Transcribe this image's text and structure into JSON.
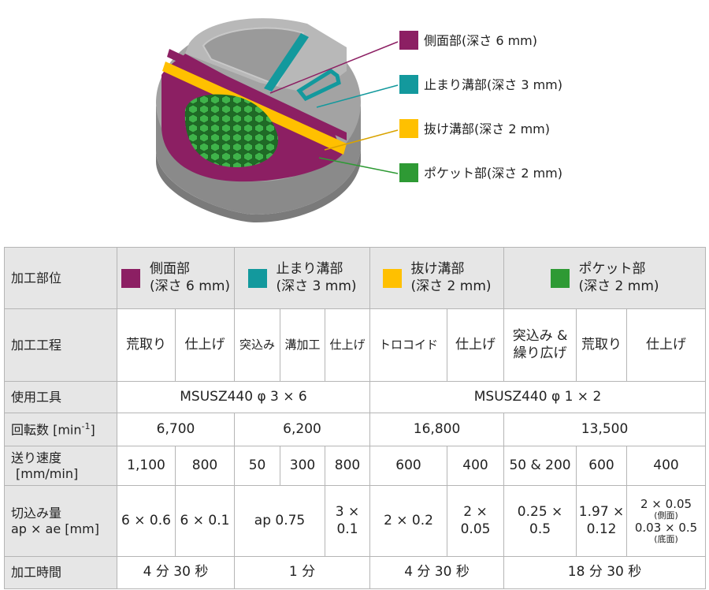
{
  "colors": {
    "side": "#8c1f63",
    "stop_groove": "#13999d",
    "through_groove": "#ffc000",
    "pocket": "#2e9a34"
  },
  "legend": [
    {
      "name": "側面部",
      "depth": "(深さ 6 mm)",
      "color": "#8c1f63"
    },
    {
      "name": "止まり溝部",
      "depth": "(深さ 3 mm)",
      "color": "#13999d"
    },
    {
      "name": "抜け溝部",
      "depth": "(深さ 2 mm)",
      "color": "#ffc000"
    },
    {
      "name": "ポケット部",
      "depth": "(深さ 2 mm)",
      "color": "#2e9a34"
    }
  ],
  "table": {
    "row_labels": {
      "part": "加工部位",
      "process": "加工工程",
      "tool": "使用工具",
      "rpm_main": "回転数 [min",
      "rpm_sup": "-1",
      "rpm_end": "]",
      "feed_1": "送り速度",
      "feed_2": "[mm/min]",
      "cut_1": "切込み量",
      "cut_2": "ap × ae [mm]",
      "time": "加工時間"
    },
    "parts": [
      {
        "name": "側面部",
        "depth": "(深さ 6 mm)"
      },
      {
        "name": "止まり溝部",
        "depth": "(深さ 3 mm)"
      },
      {
        "name": "抜け溝部",
        "depth": "(深さ 2 mm)"
      },
      {
        "name": "ポケット部",
        "depth": "(深さ 2 mm)"
      }
    ],
    "processes": {
      "p1": "荒取り",
      "p2": "仕上げ",
      "p3": "突込み",
      "p4": "溝加工",
      "p5": "仕上げ",
      "p6": "トロコイド",
      "p7": "仕上げ",
      "p8a": "突込み &",
      "p8b": "繰り広げ",
      "p9": "荒取り",
      "p10": "仕上げ"
    },
    "tools": {
      "a": "MSUSZ440 φ 3 × 6",
      "b": "MSUSZ440 φ 1 × 2"
    },
    "rpm": {
      "side": "6,700",
      "stop": "6,200",
      "through": "16,800",
      "pocket": "13,500"
    },
    "feed": {
      "f1": "1,100",
      "f2": "800",
      "f3": "50",
      "f4": "300",
      "f5": "800",
      "f6": "600",
      "f7": "400",
      "f8": "50 & 200",
      "f9": "600",
      "f10": "400"
    },
    "cut": {
      "c1": "6 × 0.6",
      "c2": "6 × 0.1",
      "c3": "ap 0.75",
      "c5a": "3 ×",
      "c5b": "0.1",
      "c6": "2 × 0.2",
      "c7a": "2 ×",
      "c7b": "0.05",
      "c8a": "0.25 ×",
      "c8b": "0.5",
      "c9a": "1.97 ×",
      "c9b": "0.12",
      "c10a": "2 × 0.05",
      "c10a_note": "(側面)",
      "c10b": "0.03 × 0.5",
      "c10b_note": "(底面)"
    },
    "time": {
      "side": "4 分 30 秒",
      "stop": "1 分",
      "through": "4 分 30 秒",
      "pocket": "18 分 30 秒"
    }
  }
}
